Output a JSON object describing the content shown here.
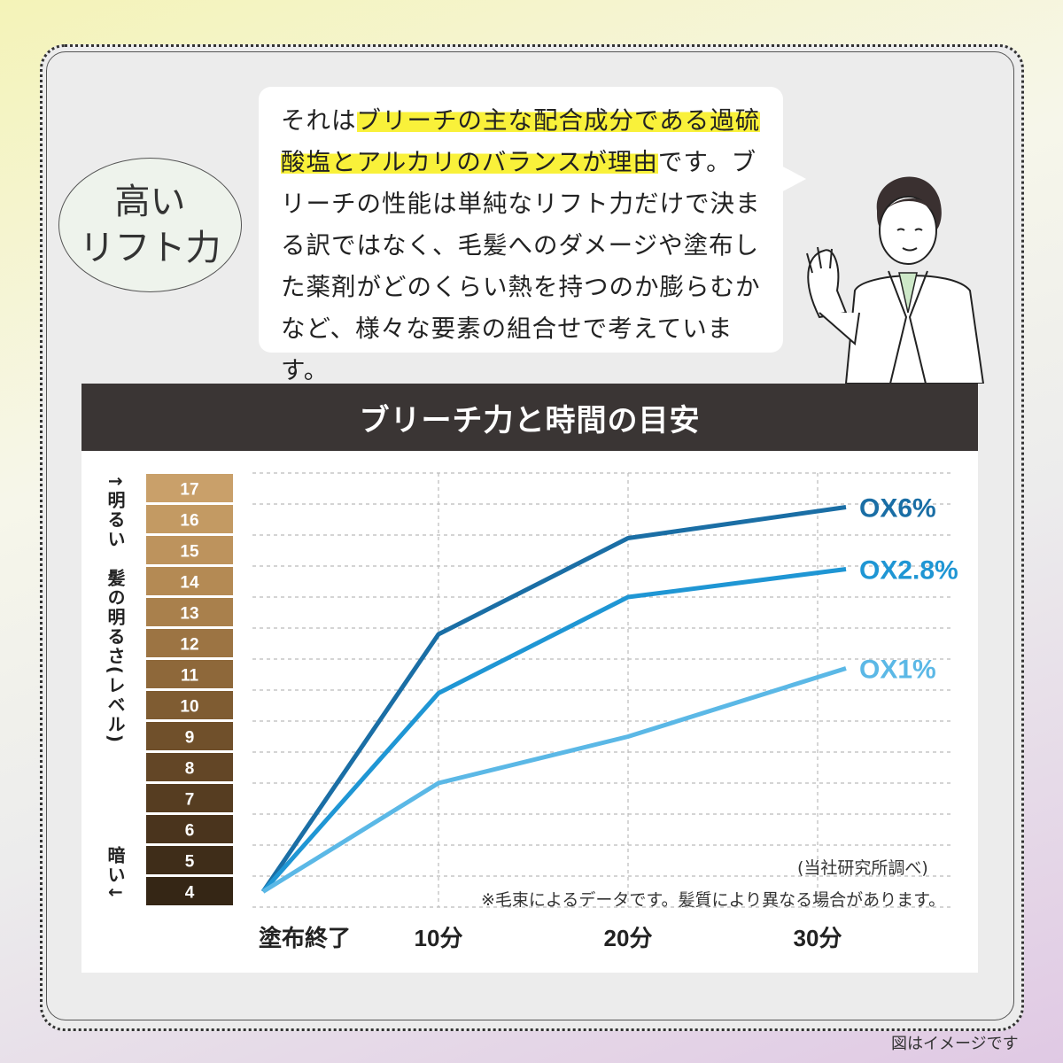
{
  "badge": {
    "line1": "高い",
    "line2": "リフト力"
  },
  "bubble": {
    "seg1": "それは",
    "seg2": "ブリーチの主な配合成分である過硫酸塩とアルカリのバランスが理由",
    "seg3": "です。ブリーチの性能は単純なリフト力だけで決まる訳ではなく、毛髪へのダメージや塗布した薬剤がどのくらい熱を持つのか膨らむかなど、様々な要素の組合せで考えています。"
  },
  "colors": {
    "highlight": "#f9f13a",
    "header_bg": "#3a3534",
    "ox6": "#1a6ea5",
    "ox28": "#1f96d4",
    "ox1": "#5bb8e6"
  },
  "y_axis_label_top": "↑明るい　髪の明るさ(レベル)",
  "y_axis_label_bottom": "暗い↓",
  "note_source": "(当社研究所調べ)",
  "note_data": "※毛束によるデータです。髪質により異なる場合があります。",
  "footnote": "図はイメージです",
  "chart_data": {
    "type": "line",
    "title": "ブリーチ力と時間の目安",
    "categories": [
      "塗布終了",
      "10分",
      "20分",
      "30分"
    ],
    "level_scale": [
      17,
      16,
      15,
      14,
      13,
      12,
      11,
      10,
      9,
      8,
      7,
      6,
      5,
      4
    ],
    "level_colors": [
      "#c9a06a",
      "#c39a63",
      "#bd935d",
      "#b48a54",
      "#a9804c",
      "#9c7443",
      "#8e683a",
      "#7f5c32",
      "#70502b",
      "#634626",
      "#563d21",
      "#4a341d",
      "#3f2d19",
      "#352615"
    ],
    "ylim": [
      4,
      17
    ],
    "grid": true,
    "series": [
      {
        "name": "OX6%",
        "values": [
          4,
          12.3,
          15.4,
          16.4
        ]
      },
      {
        "name": "OX2.8%",
        "values": [
          4,
          10.4,
          13.5,
          14.4
        ]
      },
      {
        "name": "OX1%",
        "values": [
          4,
          7.5,
          9,
          11.2
        ]
      }
    ]
  }
}
